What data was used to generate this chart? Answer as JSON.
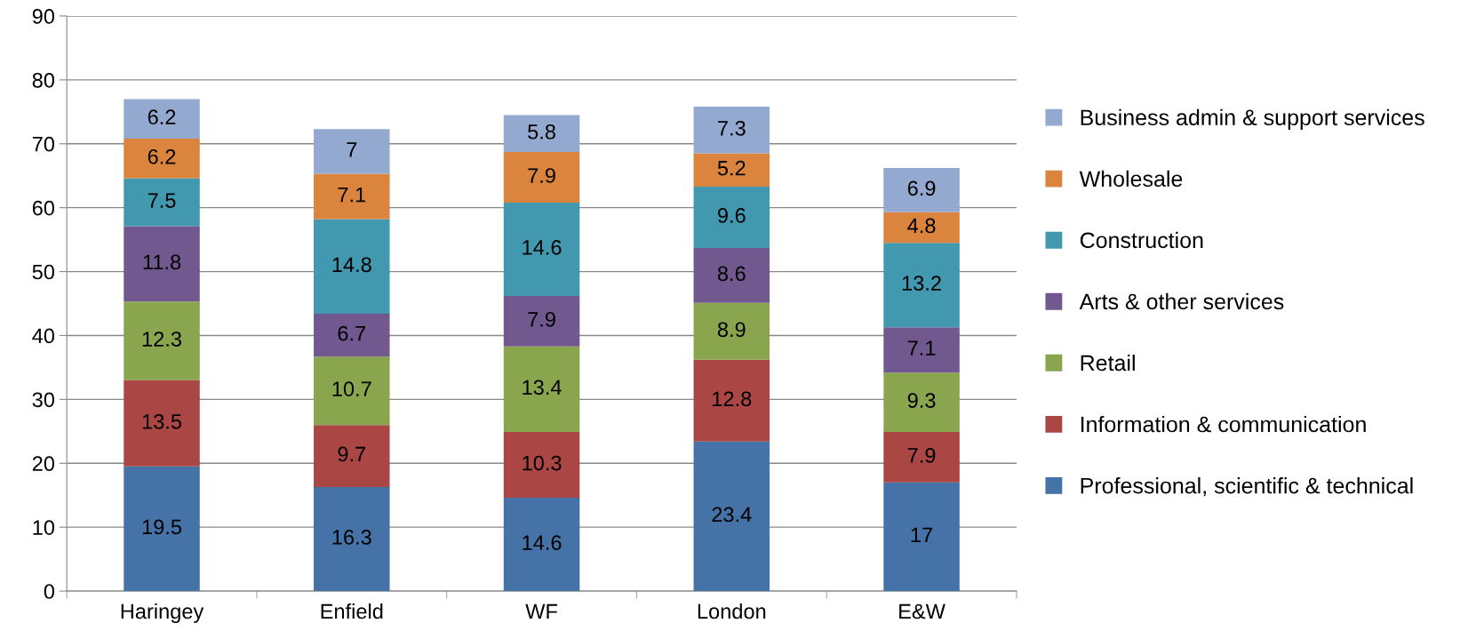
{
  "chart_data": {
    "type": "bar",
    "stacked": true,
    "categories": [
      "Haringey",
      "Enfield",
      "WF",
      "London",
      "E&W"
    ],
    "series": [
      {
        "name": "Professional, scientific & technical",
        "color": "#4572a7",
        "values": [
          19.5,
          16.3,
          14.6,
          23.4,
          17
        ]
      },
      {
        "name": "Information & communication",
        "color": "#aa4643",
        "values": [
          13.5,
          9.7,
          10.3,
          12.8,
          7.9
        ]
      },
      {
        "name": "Retail",
        "color": "#89a54e",
        "values": [
          12.3,
          10.7,
          13.4,
          8.9,
          9.3
        ]
      },
      {
        "name": "Arts & other services",
        "color": "#71588f",
        "values": [
          11.8,
          6.7,
          7.9,
          8.6,
          7.1
        ]
      },
      {
        "name": "Construction",
        "color": "#4198af",
        "values": [
          7.5,
          14.8,
          14.6,
          9.6,
          13.2
        ]
      },
      {
        "name": "Wholesale",
        "color": "#db843d",
        "values": [
          6.2,
          7.1,
          7.9,
          5.2,
          4.8
        ]
      },
      {
        "name": "Business admin & support services",
        "color": "#93a9cf",
        "values": [
          6.2,
          7,
          5.8,
          7.3,
          6.9
        ]
      }
    ],
    "ylim": [
      0,
      90
    ],
    "yticks": [
      0,
      10,
      20,
      30,
      40,
      50,
      60,
      70,
      80,
      90
    ],
    "grid": "y",
    "legend": "right",
    "data_labels": true
  }
}
